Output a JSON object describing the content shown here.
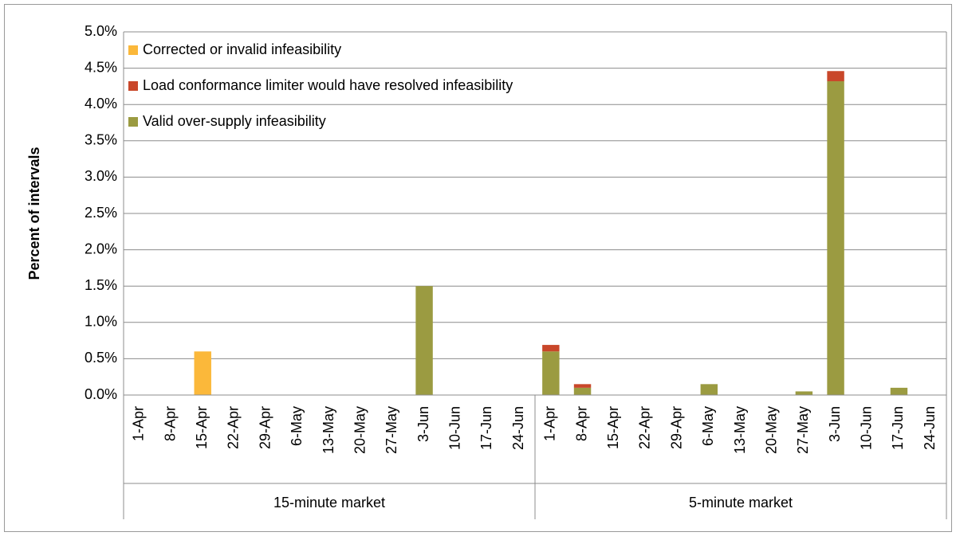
{
  "chart_data": {
    "type": "stacked_bar",
    "y_label": "Percent of intervals",
    "groups": [
      {
        "name": "15-minute market",
        "categories": [
          "1-Apr",
          "8-Apr",
          "15-Apr",
          "22-Apr",
          "29-Apr",
          "6-May",
          "13-May",
          "20-May",
          "27-May",
          "3-Jun",
          "10-Jun",
          "17-Jun",
          "24-Jun"
        ]
      },
      {
        "name": "5-minute market",
        "categories": [
          "1-Apr",
          "8-Apr",
          "15-Apr",
          "22-Apr",
          "29-Apr",
          "6-May",
          "13-May",
          "20-May",
          "27-May",
          "3-Jun",
          "10-Jun",
          "17-Jun",
          "24-Jun"
        ]
      }
    ],
    "series": [
      {
        "name": "Valid over-supply infeasibility",
        "color": "#9b9b41",
        "values": [
          0,
          0,
          0,
          0,
          0,
          0,
          0,
          0,
          0,
          1.5,
          0,
          0,
          0,
          0.6,
          0.1,
          0,
          0,
          0,
          0.15,
          0,
          0,
          0.05,
          4.32,
          0,
          0.1,
          0
        ]
      },
      {
        "name": "Load conformance limiter would have resolved infeasibility",
        "color": "#c9472a",
        "values": [
          0,
          0,
          0,
          0,
          0,
          0,
          0,
          0,
          0,
          0,
          0,
          0,
          0,
          0.09,
          0.05,
          0,
          0,
          0,
          0,
          0,
          0,
          0,
          0.14,
          0,
          0,
          0
        ]
      },
      {
        "name": "Corrected or invalid infeasibility",
        "color": "#fbb83a",
        "values": [
          0,
          0,
          0.6,
          0,
          0,
          0,
          0,
          0,
          0,
          0,
          0,
          0,
          0,
          0,
          0,
          0,
          0,
          0,
          0,
          0,
          0,
          0,
          0,
          0,
          0,
          0
        ]
      }
    ],
    "ylim": [
      0,
      5
    ],
    "yticks": [
      {
        "value": 0,
        "label": "0.0%"
      },
      {
        "value": 0.5,
        "label": "0.5%"
      },
      {
        "value": 1,
        "label": "1.0%"
      },
      {
        "value": 1.5,
        "label": "1.5%"
      },
      {
        "value": 2,
        "label": "2.0%"
      },
      {
        "value": 2.5,
        "label": "2.5%"
      },
      {
        "value": 3,
        "label": "3.0%"
      },
      {
        "value": 3.5,
        "label": "3.5%"
      },
      {
        "value": 4,
        "label": "4.0%"
      },
      {
        "value": 4.5,
        "label": "4.5%"
      },
      {
        "value": 5,
        "label": "5.0%"
      }
    ],
    "grid": true,
    "legend": "top-left"
  }
}
